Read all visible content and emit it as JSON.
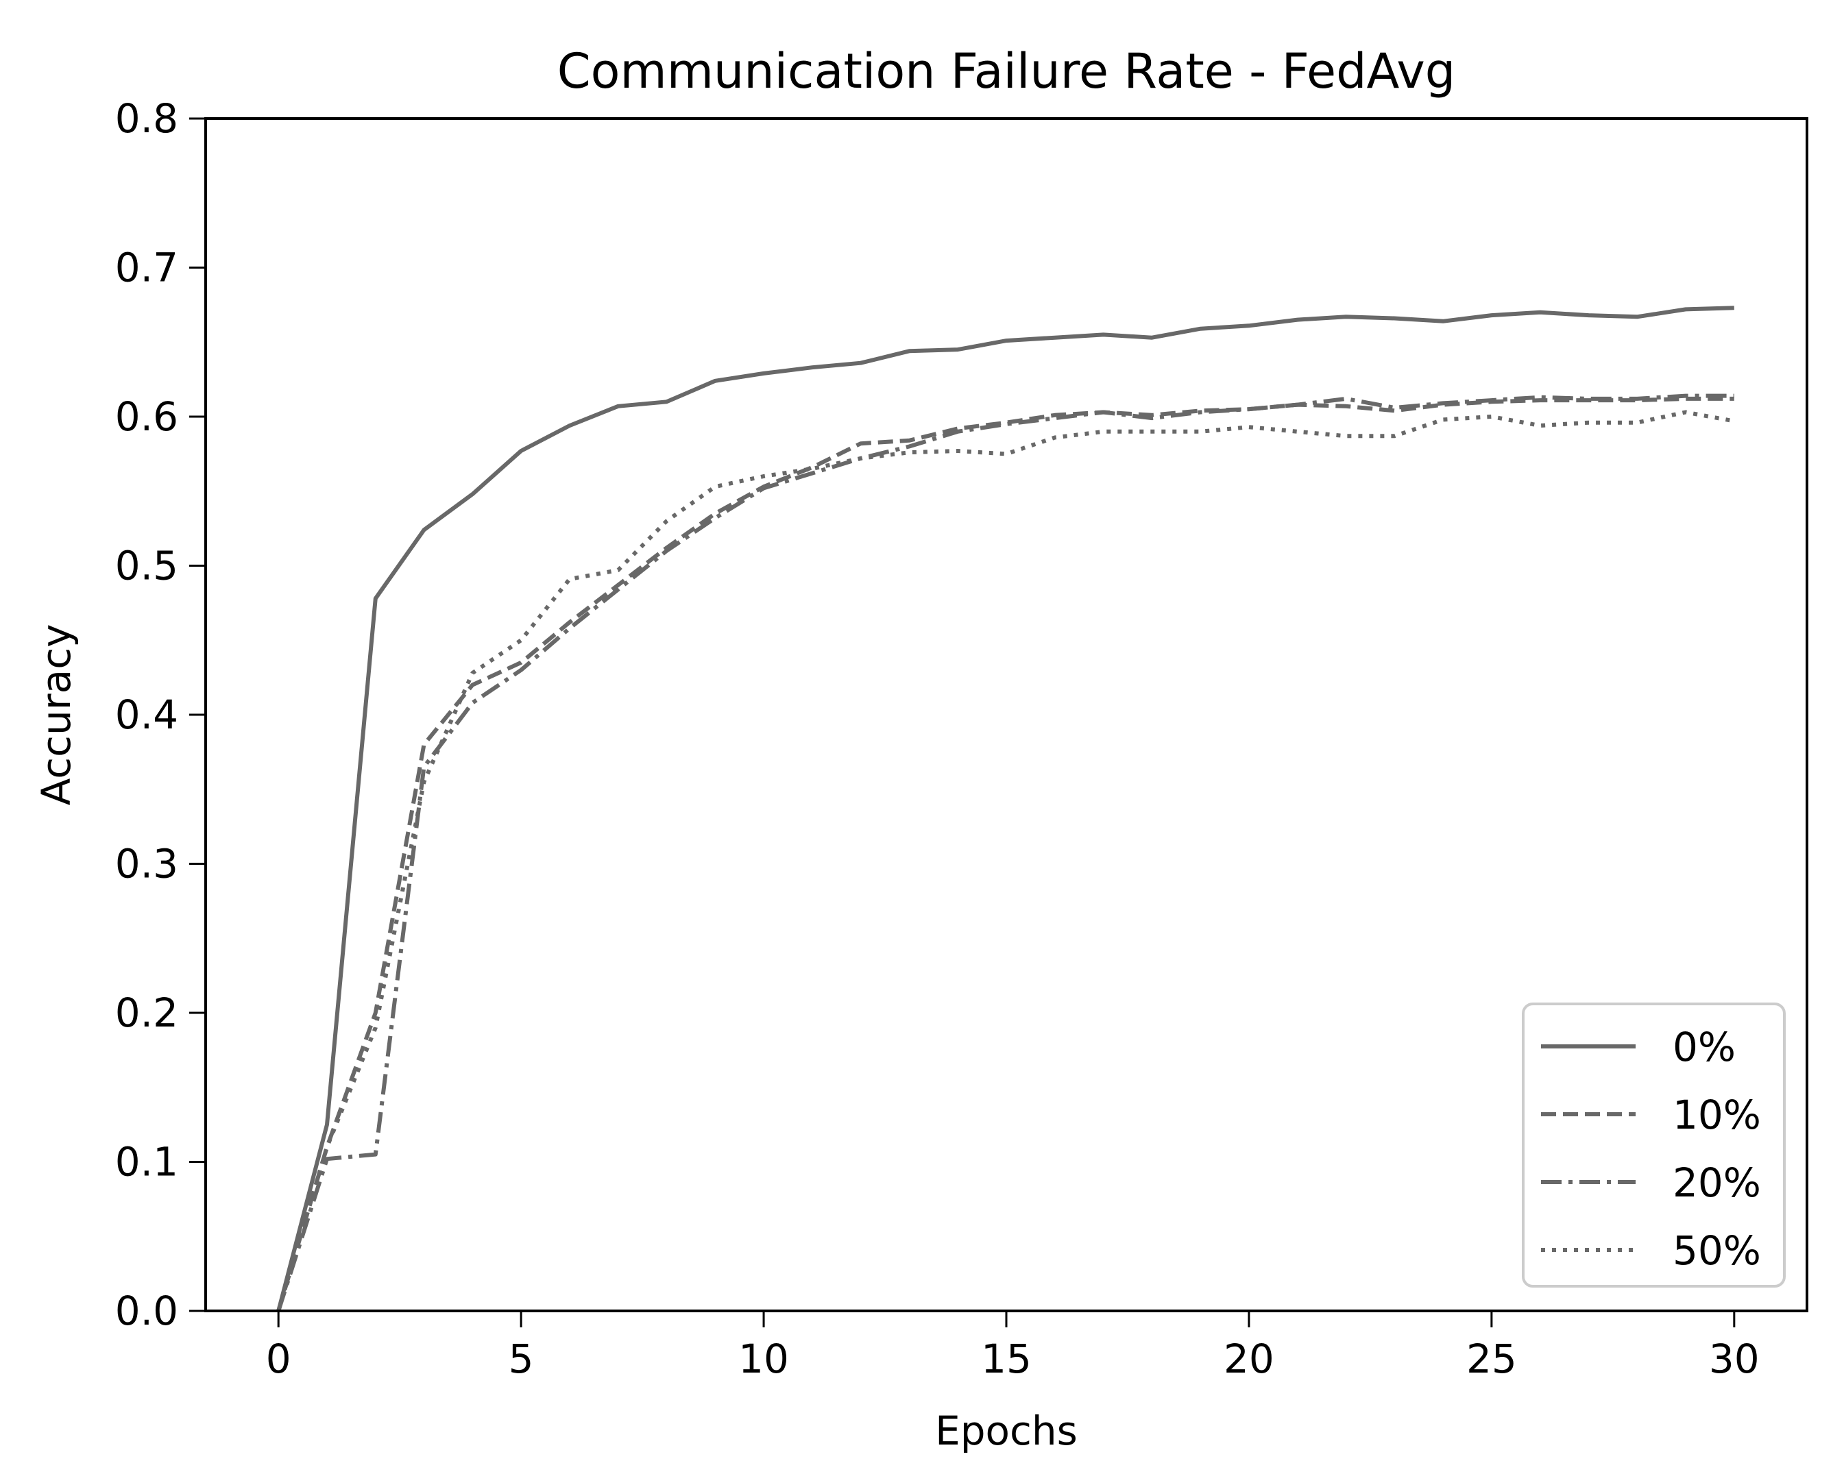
{
  "chart_data": {
    "type": "line",
    "title": "Communication Failure Rate - FedAvg",
    "xlabel": "Epochs",
    "ylabel": "Accuracy",
    "xlim": [
      -1.5,
      31.5
    ],
    "ylim": [
      0.0,
      0.8
    ],
    "xticks": [
      0,
      5,
      10,
      15,
      20,
      25,
      30
    ],
    "xtick_labels": [
      "0",
      "5",
      "10",
      "15",
      "20",
      "25",
      "30"
    ],
    "yticks": [
      0.0,
      0.1,
      0.2,
      0.3,
      0.4,
      0.5,
      0.6,
      0.7,
      0.8
    ],
    "ytick_labels": [
      "0.0",
      "0.1",
      "0.2",
      "0.3",
      "0.4",
      "0.5",
      "0.6",
      "0.7",
      "0.8"
    ],
    "grid": false,
    "legend_position": "lower right",
    "line_color": "#686868",
    "x": [
      0,
      1,
      2,
      3,
      4,
      5,
      6,
      7,
      8,
      9,
      10,
      11,
      12,
      13,
      14,
      15,
      16,
      17,
      18,
      19,
      20,
      21,
      22,
      23,
      24,
      25,
      26,
      27,
      28,
      29,
      30
    ],
    "series": [
      {
        "name": "0%",
        "style": "solid",
        "values": [
          0.0,
          0.125,
          0.478,
          0.524,
          0.548,
          0.577,
          0.594,
          0.607,
          0.61,
          0.624,
          0.629,
          0.633,
          0.636,
          0.644,
          0.645,
          0.651,
          0.653,
          0.655,
          0.653,
          0.659,
          0.661,
          0.665,
          0.667,
          0.666,
          0.664,
          0.668,
          0.67,
          0.668,
          0.667,
          0.672,
          0.673
        ]
      },
      {
        "name": "10%",
        "style": "dashed",
        "values": [
          0.0,
          0.11,
          0.2,
          0.38,
          0.42,
          0.435,
          0.462,
          0.487,
          0.512,
          0.535,
          0.553,
          0.566,
          0.582,
          0.584,
          0.592,
          0.596,
          0.601,
          0.603,
          0.601,
          0.604,
          0.605,
          0.608,
          0.607,
          0.604,
          0.608,
          0.61,
          0.611,
          0.611,
          0.611,
          0.612,
          0.612
        ]
      },
      {
        "name": "20%",
        "style": "dashdot",
        "values": [
          0.0,
          0.102,
          0.105,
          0.365,
          0.408,
          0.43,
          0.458,
          0.484,
          0.51,
          0.532,
          0.552,
          0.562,
          0.572,
          0.58,
          0.59,
          0.595,
          0.599,
          0.603,
          0.599,
          0.603,
          0.605,
          0.608,
          0.612,
          0.606,
          0.609,
          0.611,
          0.613,
          0.612,
          0.612,
          0.614,
          0.614
        ]
      },
      {
        "name": "50%",
        "style": "dotted",
        "values": [
          0.0,
          0.11,
          0.19,
          0.355,
          0.428,
          0.45,
          0.491,
          0.497,
          0.53,
          0.553,
          0.56,
          0.565,
          0.572,
          0.576,
          0.577,
          0.575,
          0.586,
          0.59,
          0.59,
          0.59,
          0.593,
          0.59,
          0.587,
          0.587,
          0.598,
          0.6,
          0.594,
          0.596,
          0.596,
          0.603,
          0.597
        ]
      }
    ]
  },
  "legend": {
    "items": [
      {
        "label": "0%",
        "style": "solid"
      },
      {
        "label": "10%",
        "style": "dashed"
      },
      {
        "label": "20%",
        "style": "dashdot"
      },
      {
        "label": "50%",
        "style": "dotted"
      }
    ]
  }
}
